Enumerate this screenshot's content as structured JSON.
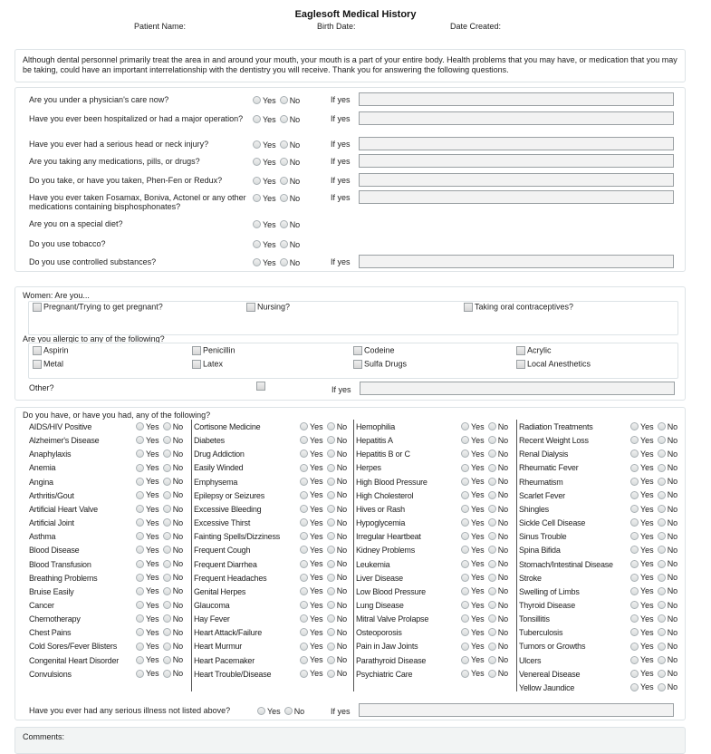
{
  "header": {
    "title": "Eaglesoft Medical History",
    "patient_name_label": "Patient Name:",
    "birth_date_label": "Birth Date:",
    "date_created_label": "Date Created:"
  },
  "intro": "Although dental personnel primarily treat the area in and around your mouth, your mouth is a part of your entire body.  Health problems that you may have, or medication that you may be taking, could have an important interrelationship with the dentistry you will receive.  Thank you for answering the following questions.",
  "labels": {
    "yes": "Yes",
    "no": "No",
    "if_yes": "If yes"
  },
  "questions": [
    {
      "text": "Are you under a physician's care now?",
      "if_yes": true
    },
    {
      "text": "Have you ever been hospitalized or had a major operation?",
      "if_yes": true
    },
    {
      "text": "Have you ever had a serious head or neck injury?",
      "if_yes": true
    },
    {
      "text": "Are you taking any medications, pills, or drugs?",
      "if_yes": true
    },
    {
      "text": "Do you take, or have you taken, Phen-Fen or Redux?",
      "if_yes": true
    },
    {
      "text": "Have you ever taken Fosamax, Boniva, Actonel or any other medications containing bisphosphonates?",
      "if_yes": true
    },
    {
      "text": "Are you on a special diet?",
      "if_yes": false
    },
    {
      "text": "Do you use tobacco?",
      "if_yes": false
    },
    {
      "text": "Do you use controlled substances?",
      "if_yes": true
    }
  ],
  "women": {
    "label": "Women: Are you...",
    "items": [
      "Pregnant/Trying to get pregnant?",
      "Nursing?",
      "Taking oral contraceptives?"
    ]
  },
  "allergies": {
    "label": "Are you allergic to any of the following?",
    "items": [
      "Aspirin",
      "Penicillin",
      "Codeine",
      "Acrylic",
      "Metal",
      "Latex",
      "Sulfa Drugs",
      "Local Anesthetics"
    ],
    "other_label": "Other?"
  },
  "conditions": {
    "label": "Do you have, or have you had, any of the following?",
    "columns": [
      [
        "AIDS/HIV Positive",
        "Alzheimer's Disease",
        "Anaphylaxis",
        "Anemia",
        "Angina",
        "Arthritis/Gout",
        "Artificial Heart Valve",
        "Artificial Joint",
        "Asthma",
        "Blood Disease",
        "Blood Transfusion",
        "Breathing Problems",
        "Bruise Easily",
        "Cancer",
        "Chemotherapy",
        "Chest Pains",
        "Cold Sores/Fever Blisters",
        "Congenital Heart Disorder",
        "Convulsions"
      ],
      [
        "Cortisone Medicine",
        "Diabetes",
        "Drug Addiction",
        "Easily Winded",
        "Emphysema",
        "Epilepsy or Seizures",
        "Excessive Bleeding",
        "Excessive Thirst",
        "Fainting Spells/Dizziness",
        "Frequent Cough",
        "Frequent Diarrhea",
        "Frequent Headaches",
        "Genital Herpes",
        "Glaucoma",
        "Hay Fever",
        "Heart Attack/Failure",
        "Heart Murmur",
        "Heart Pacemaker",
        "Heart Trouble/Disease"
      ],
      [
        "Hemophilia",
        "Hepatitis A",
        "Hepatitis B or C",
        "Herpes",
        "High Blood Pressure",
        "High Cholesterol",
        "Hives or Rash",
        "Hypoglycemia",
        "Irregular Heartbeat",
        "Kidney Problems",
        "Leukemia",
        "Liver Disease",
        "Low Blood Pressure",
        "Lung Disease",
        "Mitral Valve Prolapse",
        "Osteoporosis",
        "Pain in Jaw Joints",
        "Parathyroid Disease",
        "Psychiatric Care"
      ],
      [
        "Radiation Treatments",
        "Recent Weight Loss",
        "Renal Dialysis",
        "Rheumatic Fever",
        "Rheumatism",
        "Scarlet Fever",
        "Shingles",
        "Sickle Cell Disease",
        "Sinus Trouble",
        "Spina Bifida",
        "Stomach/Intestinal Disease",
        "Stroke",
        "Swelling of Limbs",
        "Thyroid Disease",
        "Tonsillitis",
        "Tuberculosis",
        "Tumors or Growths",
        "Ulcers",
        "Venereal Disease",
        "Yellow Jaundice"
      ]
    ],
    "other_question": "Have you ever had any serious illness not listed above?"
  },
  "comments_label": "Comments:"
}
